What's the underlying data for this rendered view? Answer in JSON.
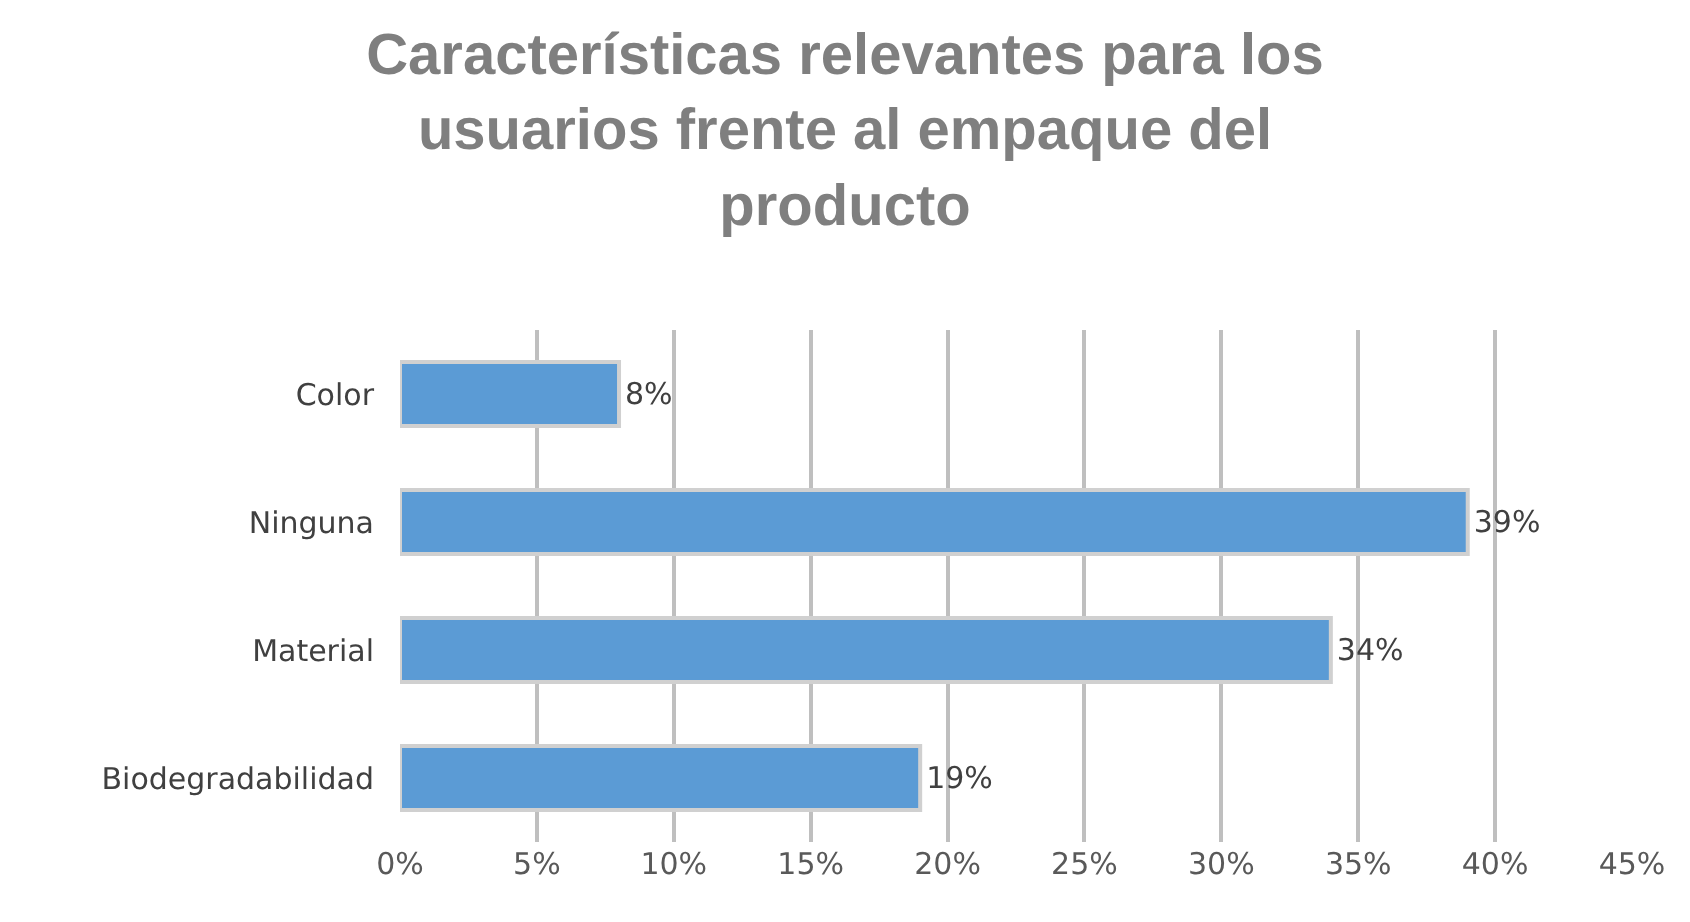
{
  "chart_data": {
    "type": "bar",
    "orientation": "horizontal",
    "title": "Características relevantes para los usuarios frente al empaque del producto",
    "categories": [
      "Color",
      "Ninguna",
      "Material",
      "Biodegradabilidad"
    ],
    "values": [
      8,
      39,
      34,
      19
    ],
    "color": "#5b9bd5",
    "value_labels": [
      "8%",
      "39%",
      "34%",
      "19%"
    ],
    "xlim": [
      0,
      45
    ],
    "xticks": [
      {
        "value": 0,
        "label": "0%"
      },
      {
        "value": 5,
        "label": "5%"
      },
      {
        "value": 10,
        "label": "10%"
      },
      {
        "value": 15,
        "label": "15%"
      },
      {
        "value": 20,
        "label": "20%"
      },
      {
        "value": 25,
        "label": "25%"
      },
      {
        "value": 30,
        "label": "30%"
      },
      {
        "value": 35,
        "label": "35%"
      },
      {
        "value": 40,
        "label": "40%"
      },
      {
        "value": 45,
        "label": "45%"
      }
    ],
    "grid": "x",
    "legend": false
  }
}
